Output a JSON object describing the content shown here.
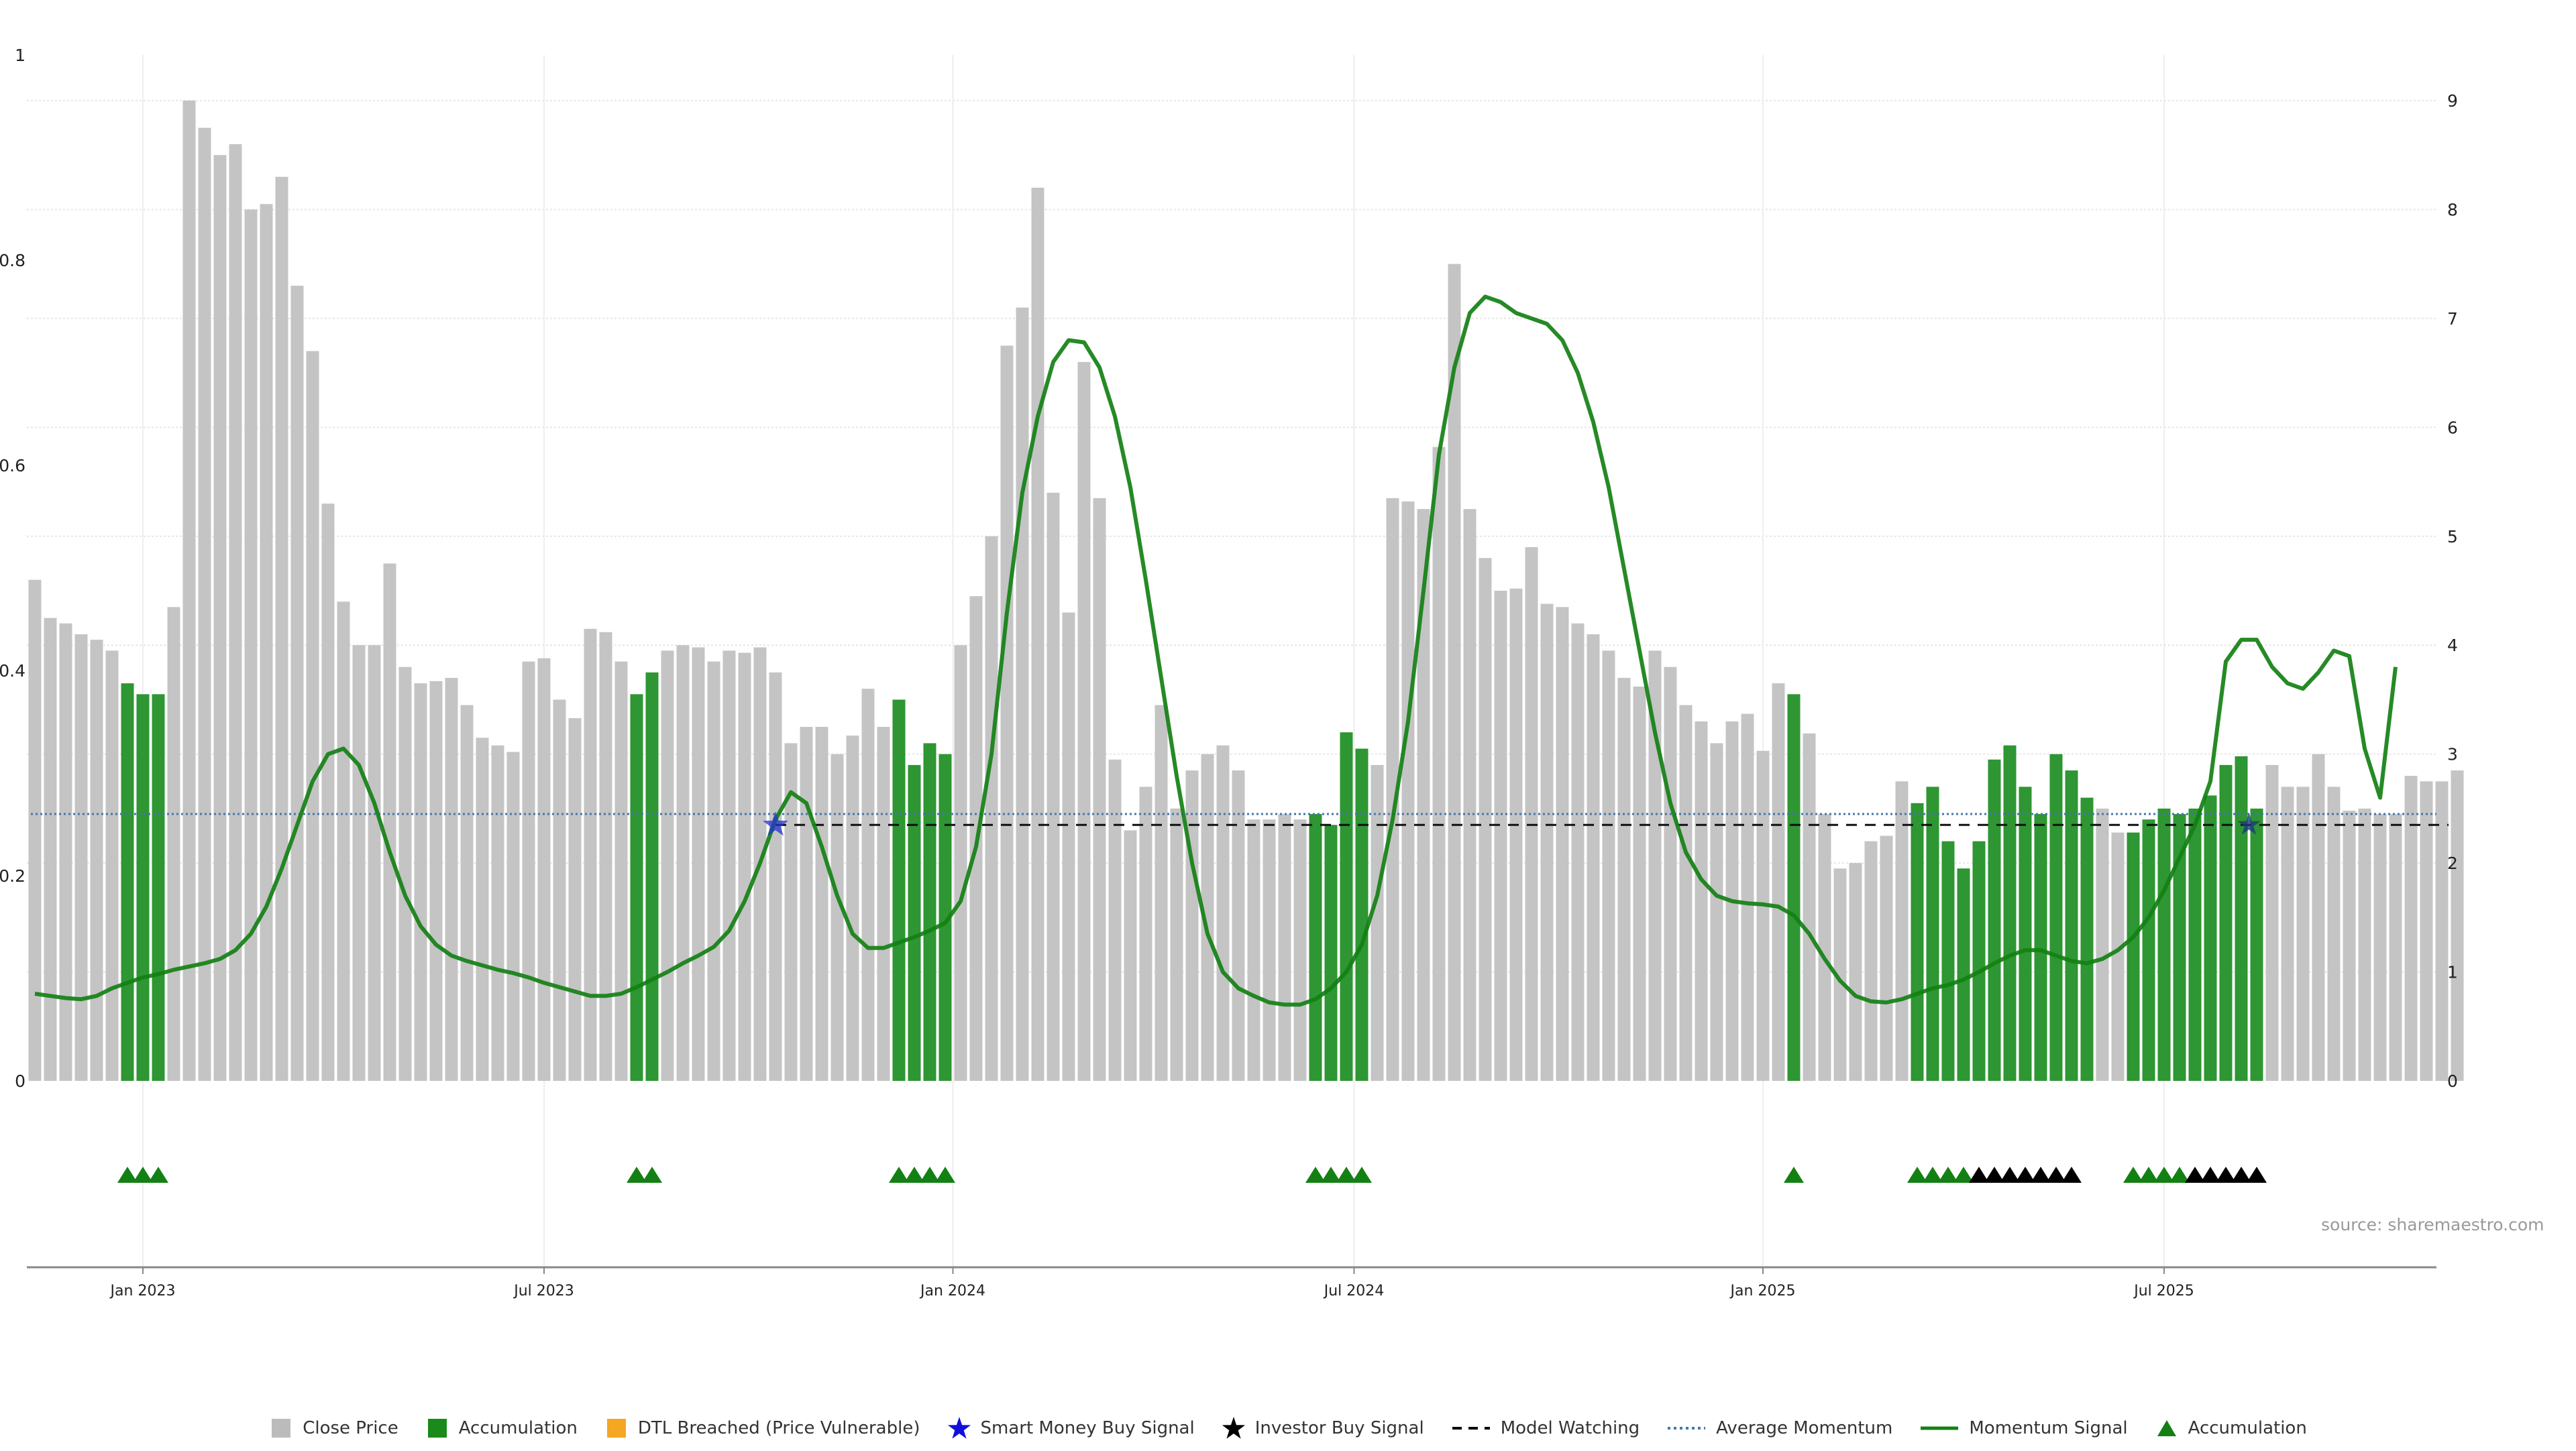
{
  "chart_data": {
    "type": "bar",
    "left_axis": {
      "ylim": [
        0,
        1
      ],
      "ticks": [
        "0",
        "0.2",
        "0.4",
        "0.6",
        "0.8",
        "1"
      ]
    },
    "right_axis": {
      "ylim": [
        0,
        9
      ],
      "ticks": [
        "0",
        "1",
        "2",
        "3",
        "4",
        "5",
        "6",
        "7",
        "8",
        "9"
      ]
    },
    "x_ticks": [
      {
        "label": "Jan 2023",
        "index": 7
      },
      {
        "label": "Jul 2023",
        "index": 33
      },
      {
        "label": "Jan 2024",
        "index": 59.5
      },
      {
        "label": "Jul 2024",
        "index": 85.5
      },
      {
        "label": "Jan 2025",
        "index": 112
      },
      {
        "label": "Jul 2025",
        "index": 138
      }
    ],
    "grid": true,
    "close_price": [
      4.6,
      4.25,
      4.2,
      4.1,
      4.05,
      3.95,
      3.65,
      3.55,
      3.55,
      4.35,
      9.0,
      8.75,
      8.5,
      8.6,
      8.0,
      8.05,
      8.3,
      7.3,
      6.7,
      5.3,
      4.4,
      4.0,
      4.0,
      4.75,
      3.8,
      3.65,
      3.67,
      3.7,
      3.45,
      3.15,
      3.08,
      3.02,
      3.85,
      3.88,
      3.5,
      3.33,
      4.15,
      4.12,
      3.85,
      3.55,
      3.75,
      3.95,
      4.0,
      3.98,
      3.85,
      3.95,
      3.93,
      3.98,
      3.75,
      3.1,
      3.25,
      3.25,
      3.0,
      3.17,
      3.6,
      3.25,
      3.5,
      2.9,
      3.1,
      3.0,
      4.0,
      4.45,
      5.0,
      6.75,
      7.1,
      8.2,
      5.4,
      4.3,
      6.6,
      5.35,
      2.95,
      2.3,
      2.7,
      3.45,
      2.5,
      2.85,
      3.0,
      3.08,
      2.85,
      2.4,
      2.4,
      2.45,
      2.4,
      2.45,
      2.35,
      3.2,
      3.05,
      2.9,
      5.35,
      5.32,
      5.25,
      5.82,
      7.5,
      5.25,
      4.8,
      4.5,
      4.52,
      4.9,
      4.38,
      4.35,
      4.2,
      4.1,
      3.95,
      3.7,
      3.62,
      3.95,
      3.8,
      3.45,
      3.3,
      3.1,
      3.3,
      3.37,
      3.03,
      3.65,
      3.55,
      3.19,
      2.45,
      1.95,
      2.0,
      2.2,
      2.25,
      2.75,
      2.55,
      2.7,
      2.2,
      1.95,
      2.2,
      2.95,
      3.08,
      2.7,
      2.45,
      3.0,
      2.85,
      2.6,
      2.5,
      2.28,
      2.28,
      2.4,
      2.5,
      2.45,
      2.5,
      2.62,
      2.9,
      2.98,
      2.5,
      2.9,
      2.7,
      2.7,
      3.0,
      2.7,
      2.48,
      2.5,
      2.45,
      2.45,
      2.8,
      2.75,
      2.75,
      2.85
    ],
    "accumulation_bar_indices": [
      6,
      7,
      8,
      39,
      40,
      56,
      57,
      58,
      59,
      83,
      84,
      85,
      86,
      114,
      122,
      123,
      124,
      125,
      126,
      127,
      128,
      129,
      130,
      131,
      132,
      133,
      136,
      137,
      138,
      139,
      140,
      141,
      142,
      143,
      144
    ],
    "accumulation_markers_green": [
      6,
      7,
      8,
      39,
      40,
      56,
      57,
      58,
      59,
      83,
      84,
      85,
      86,
      114,
      122,
      123,
      124,
      125,
      136,
      137,
      138,
      139
    ],
    "investor_buy_markers_black": [
      126,
      127,
      128,
      129,
      130,
      131,
      132,
      140,
      141,
      142,
      143,
      144
    ],
    "smart_money_buy_signal": [
      {
        "index": 48,
        "y": 2.35
      }
    ],
    "investor_buy_signal_on_line": [
      {
        "index": 143.5,
        "y": 2.35
      }
    ],
    "model_watching": {
      "y": 2.35,
      "from_index": 48,
      "to_index": 156
    },
    "average_momentum": 2.45,
    "momentum_signal": [
      0.8,
      0.78,
      0.76,
      0.75,
      0.78,
      0.85,
      0.9,
      0.95,
      0.98,
      1.02,
      1.05,
      1.08,
      1.12,
      1.2,
      1.35,
      1.6,
      1.95,
      2.35,
      2.75,
      3.0,
      3.05,
      2.9,
      2.55,
      2.1,
      1.7,
      1.42,
      1.25,
      1.15,
      1.1,
      1.06,
      1.02,
      0.99,
      0.95,
      0.9,
      0.86,
      0.82,
      0.78,
      0.78,
      0.8,
      0.86,
      0.93,
      1.0,
      1.08,
      1.15,
      1.23,
      1.38,
      1.65,
      2.0,
      2.4,
      2.65,
      2.55,
      2.15,
      1.7,
      1.35,
      1.22,
      1.22,
      1.27,
      1.32,
      1.38,
      1.45,
      1.65,
      2.15,
      3.0,
      4.3,
      5.4,
      6.1,
      6.6,
      6.8,
      6.78,
      6.55,
      6.1,
      5.45,
      4.6,
      3.7,
      2.8,
      2.0,
      1.35,
      1.0,
      0.85,
      0.78,
      0.72,
      0.7,
      0.7,
      0.75,
      0.85,
      1.0,
      1.25,
      1.7,
      2.4,
      3.3,
      4.5,
      5.75,
      6.55,
      7.05,
      7.2,
      7.15,
      7.05,
      7.0,
      6.95,
      6.8,
      6.5,
      6.05,
      5.45,
      4.7,
      3.95,
      3.2,
      2.55,
      2.1,
      1.85,
      1.7,
      1.65,
      1.63,
      1.62,
      1.6,
      1.52,
      1.35,
      1.12,
      0.92,
      0.78,
      0.73,
      0.72,
      0.75,
      0.8,
      0.85,
      0.88,
      0.93,
      1.0,
      1.08,
      1.15,
      1.2,
      1.2,
      1.15,
      1.1,
      1.08,
      1.12,
      1.2,
      1.32,
      1.5,
      1.75,
      2.05,
      2.35,
      2.75,
      3.85,
      4.05,
      4.05,
      3.8,
      3.65,
      3.6,
      3.75,
      3.95,
      3.9,
      3.05,
      2.6,
      3.8
    ],
    "source": "source: sharemaestro.com",
    "legend": [
      {
        "label": "Close Price",
        "symbol": "square",
        "color": "#bbbbbb"
      },
      {
        "label": "Accumulation",
        "symbol": "square",
        "color": "#1a8a1a"
      },
      {
        "label": "DTL Breached (Price Vulnerable)",
        "symbol": "square",
        "color": "#f5a623"
      },
      {
        "label": "Smart Money Buy Signal",
        "symbol": "star",
        "color": "#1010dd"
      },
      {
        "label": "Investor Buy Signal",
        "symbol": "star",
        "color": "#000000"
      },
      {
        "label": "Model Watching",
        "symbol": "dash",
        "color": "#000000"
      },
      {
        "label": "Average Momentum",
        "symbol": "dot",
        "color": "#4477aa"
      },
      {
        "label": "Momentum Signal",
        "symbol": "line",
        "color": "#138013"
      },
      {
        "label": "Accumulation",
        "symbol": "triangle",
        "color": "#138013"
      }
    ],
    "colors": {
      "close_bar": "#c4c4c4",
      "accum_bar": "#2e9632",
      "momentum_line": "#138013",
      "avg_momentum": "#4477aa",
      "model_watching": "#111111",
      "smart_money_star": "#2233cc",
      "triangle_green": "#138013",
      "triangle_black": "#000000"
    }
  }
}
